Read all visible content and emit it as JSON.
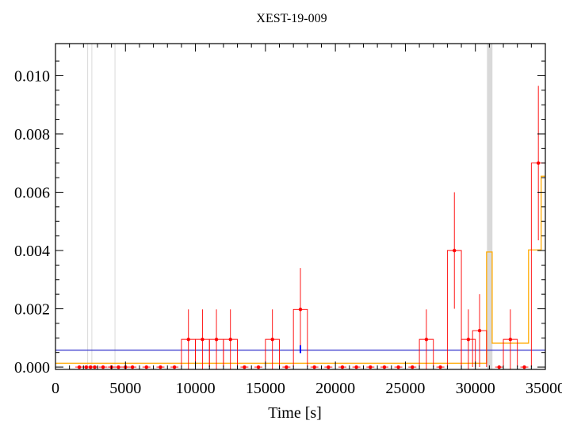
{
  "chart_data": {
    "type": "line",
    "title": "XEST-19-009",
    "xlabel": "Time [s]",
    "ylabel": "",
    "xlim": [
      0,
      35000
    ],
    "ylim": [
      -8e-05,
      0.0111
    ],
    "xticks": [
      0,
      5000,
      10000,
      15000,
      20000,
      25000,
      30000,
      35000
    ],
    "xtick_labels": [
      "0",
      "5000",
      "10000",
      "15000",
      "20000",
      "25000",
      "30000",
      "35000"
    ],
    "yticks": [
      0.0,
      0.002,
      0.004,
      0.006,
      0.008,
      0.01
    ],
    "ytick_labels": [
      "0.000",
      "0.002",
      "0.004",
      "0.006",
      "0.008",
      "0.010"
    ],
    "grid": false,
    "colors": {
      "binned": "#ff0000",
      "blocks": "#ffaa00",
      "baseline": "#3333cc",
      "marker": "#0000ff",
      "gap": "#d9d9d9",
      "faint_lines": "#d9d9d9"
    },
    "gap_band": [
      30830,
      31220
    ],
    "faint_vertical_lines": [
      2300,
      2600,
      4250
    ],
    "baseline_level": 0.00058,
    "marker": {
      "x": 17500,
      "y0": 0.00048,
      "y1": 0.00075
    },
    "series": [
      {
        "type": "step-errorbar",
        "bin_width": 1000,
        "points": [
          {
            "x": 1700,
            "y": 0.0
          },
          {
            "x": 2200,
            "y": 0.0
          },
          {
            "x": 2500,
            "y": 0.0
          },
          {
            "x": 2800,
            "y": 0.0
          },
          {
            "x": 3400,
            "y": 0.0
          },
          {
            "x": 4000,
            "y": 0.0
          },
          {
            "x": 4500,
            "y": 0.0
          },
          {
            "x": 5000,
            "y": 0.0
          },
          {
            "x": 5500,
            "y": 0.0
          },
          {
            "x": 6500,
            "y": 0.0
          },
          {
            "x": 7500,
            "y": 0.0
          },
          {
            "x": 8500,
            "y": 0.0
          },
          {
            "x": 9500,
            "y": 0.00095,
            "err": 0.00103
          },
          {
            "x": 10500,
            "y": 0.00095,
            "err": 0.00103
          },
          {
            "x": 11500,
            "y": 0.00095,
            "err": 0.00103
          },
          {
            "x": 12500,
            "y": 0.00095,
            "err": 0.00103
          },
          {
            "x": 13500,
            "y": 0.0
          },
          {
            "x": 14500,
            "y": 0.0
          },
          {
            "x": 15500,
            "y": 0.00095,
            "err": 0.00103
          },
          {
            "x": 16500,
            "y": 0.0
          },
          {
            "x": 17500,
            "y": 0.00198,
            "err": 0.00142
          },
          {
            "x": 18500,
            "y": 0.0
          },
          {
            "x": 19500,
            "y": 0.0
          },
          {
            "x": 20500,
            "y": 0.0
          },
          {
            "x": 21500,
            "y": 0.0
          },
          {
            "x": 22500,
            "y": 0.0
          },
          {
            "x": 23500,
            "y": 0.0
          },
          {
            "x": 24500,
            "y": 0.0
          },
          {
            "x": 25500,
            "y": 0.0
          },
          {
            "x": 26500,
            "y": 0.00095,
            "err": 0.00103
          },
          {
            "x": 27500,
            "y": 0.0
          },
          {
            "x": 28500,
            "y": 0.004,
            "err": 0.002
          },
          {
            "x": 29500,
            "y": 0.00095,
            "err": 0.00103
          },
          {
            "x": 30300,
            "y": 0.00125,
            "err": 0.00125
          },
          {
            "x": 31700,
            "y": 0.0
          },
          {
            "x": 32500,
            "y": 0.00095,
            "err": 0.00103
          },
          {
            "x": 33500,
            "y": 0.0
          },
          {
            "x": 34500,
            "y": 0.007,
            "err": 0.00265
          }
        ]
      },
      {
        "type": "step",
        "steps": [
          {
            "x0": 0,
            "x1": 30800,
            "y": 0.00013
          },
          {
            "x0": 30800,
            "x1": 31200,
            "y": 0.00395
          },
          {
            "x0": 31200,
            "x1": 33800,
            "y": 0.00082
          },
          {
            "x0": 33800,
            "x1": 34700,
            "y": 0.00402
          },
          {
            "x0": 34700,
            "x1": 35000,
            "y": 0.00655
          }
        ]
      }
    ]
  }
}
